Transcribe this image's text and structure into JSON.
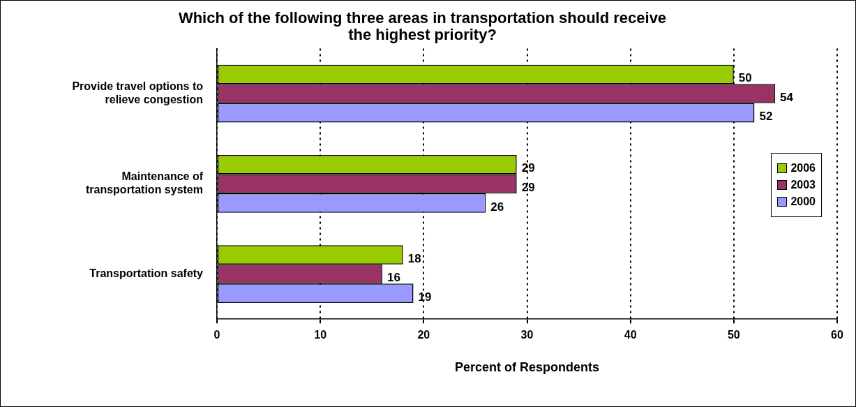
{
  "chart_data": {
    "type": "bar",
    "orientation": "horizontal",
    "title": "Which of the following three areas in transportation should receive the highest priority?",
    "xlabel": "Percent of Respondents",
    "categories": [
      "Provide travel options to relieve congestion",
      "Maintenance of transportation system",
      "Transportation safety"
    ],
    "series": [
      {
        "name": "2006",
        "color": "#99cc00",
        "values": [
          50,
          29,
          18
        ]
      },
      {
        "name": "2003",
        "color": "#993366",
        "values": [
          54,
          29,
          16
        ]
      },
      {
        "name": "2000",
        "color": "#9999ff",
        "values": [
          52,
          26,
          19
        ]
      }
    ],
    "xlim": [
      0,
      60
    ],
    "xticks": [
      0,
      10,
      20,
      30,
      40,
      50,
      60
    ],
    "grid": "x",
    "legend": "right",
    "data_labels": true
  }
}
